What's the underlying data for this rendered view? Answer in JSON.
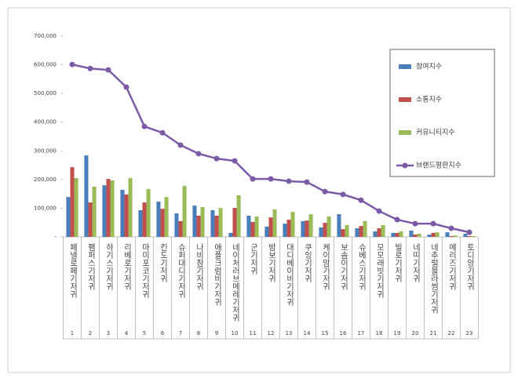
{
  "chart_data": {
    "type": "bar-line",
    "categories": [
      "페넬로페기저귀",
      "팸퍼스기저귀",
      "하기스기저귀",
      "리베로기저귀",
      "마미포코기저귀",
      "킨도기저귀",
      "슈퍼대디기저귀",
      "나비잠기저귀",
      "애플크럼비기저귀",
      "네이처러브메레기저귀",
      "군기저귀",
      "밤보기저귀",
      "대디베이비기저귀",
      "쿠잉기저귀",
      "케이맘기저귀",
      "보솜이기저귀",
      "슈베스기저귀",
      "모모래빗기저귀",
      "빌로기저귀",
      "네띠기저귀",
      "네추럴블라썸기저귀",
      "메리즈기저귀",
      "토디앙기저귀"
    ],
    "ranks": [
      1,
      2,
      3,
      4,
      5,
      6,
      7,
      8,
      9,
      10,
      11,
      12,
      13,
      14,
      15,
      16,
      17,
      18,
      19,
      20,
      21,
      22,
      23
    ],
    "series": [
      {
        "name": "참여지수",
        "type": "bar",
        "color": "#4a7ebb",
        "values": [
          139000,
          284000,
          180000,
          164000,
          93000,
          123000,
          82000,
          109000,
          93000,
          14000,
          74000,
          36000,
          46000,
          55000,
          33000,
          79000,
          30000,
          19000,
          14000,
          22000,
          8000,
          16000,
          11000
        ]
      },
      {
        "name": "소통지수",
        "type": "bar",
        "color": "#c0504d",
        "values": [
          243000,
          120000,
          202000,
          148000,
          120000,
          98000,
          55000,
          74000,
          74000,
          101000,
          52000,
          68000,
          60000,
          57000,
          49000,
          27000,
          38000,
          30000,
          14000,
          8000,
          14000,
          3000,
          3000
        ]
      },
      {
        "name": "커뮤니티지수",
        "type": "bar",
        "color": "#9bbb59",
        "values": [
          205000,
          175000,
          197000,
          205000,
          167000,
          139000,
          178000,
          104000,
          101000,
          145000,
          71000,
          96000,
          87000,
          79000,
          71000,
          41000,
          55000,
          41000,
          19000,
          11000,
          16000,
          5000,
          3000
        ]
      },
      {
        "name": "브랜드평판지수",
        "type": "line",
        "color": "#7b5ba6",
        "values": [
          601000,
          587000,
          582000,
          522000,
          385000,
          363000,
          320000,
          290000,
          273000,
          265000,
          202000,
          202000,
          194000,
          191000,
          158000,
          148000,
          128000,
          90000,
          60000,
          46000,
          46000,
          30000,
          16000
        ]
      }
    ],
    "ylim": [
      0,
      700000
    ],
    "yticks": [
      {
        "value": 0,
        "label": "-"
      },
      {
        "value": 100000,
        "label": "100,000"
      },
      {
        "value": 200000,
        "label": "200,000"
      },
      {
        "value": 300000,
        "label": "300,000"
      },
      {
        "value": 400000,
        "label": "400,000"
      },
      {
        "value": 500000,
        "label": "500,000"
      },
      {
        "value": 600000,
        "label": "600,000"
      },
      {
        "value": 700000,
        "label": "700,000"
      }
    ],
    "grid": false,
    "legend": "right"
  }
}
